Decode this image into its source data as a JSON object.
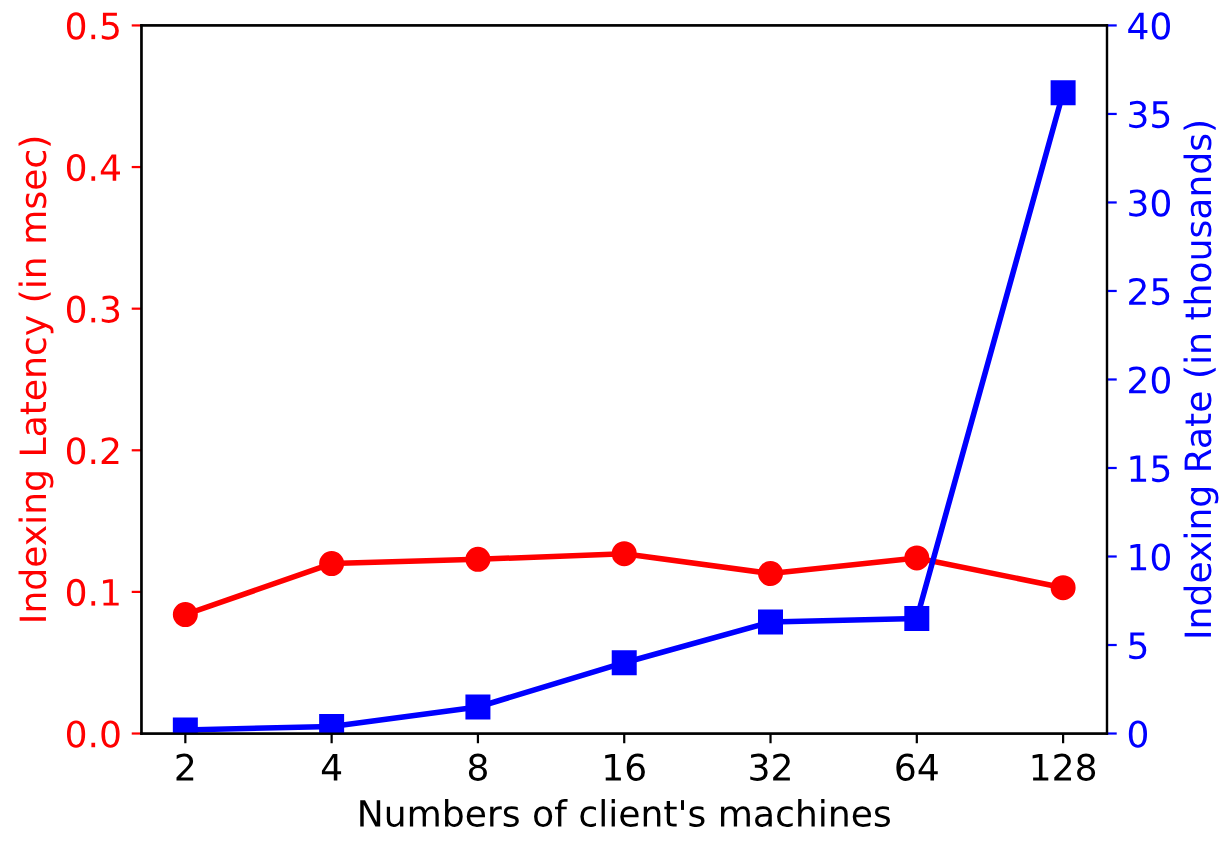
{
  "chart_data": {
    "type": "line",
    "xlabel": "Numbers of client's machines",
    "ylabel": "Indexing Latency (in msec)",
    "y2label": "Indexing Rate (in thousands)",
    "categories": [
      "2",
      "4",
      "8",
      "16",
      "32",
      "64",
      "128"
    ],
    "series": [
      {
        "color": "#ff0000",
        "marker": "circle",
        "values": [
          0.084,
          0.12,
          0.123,
          0.127,
          0.113,
          0.124,
          0.103
        ]
      },
      {
        "color": "#0000ff",
        "marker": "square",
        "axis": "y2",
        "values": [
          0.2,
          0.4,
          1.5,
          4.0,
          6.3,
          6.5,
          36.2
        ]
      }
    ],
    "ylim": [
      0,
      0.5
    ],
    "yticks": [
      {
        "value": 0,
        "label": "0.0"
      },
      0.1,
      0.2,
      0.3,
      0.4,
      0.5
    ],
    "y2lim": [
      0,
      40
    ],
    "y2ticks": [
      0,
      5,
      10,
      15,
      20,
      25,
      30,
      35,
      40
    ],
    "grid": false,
    "line_style": "solid"
  }
}
